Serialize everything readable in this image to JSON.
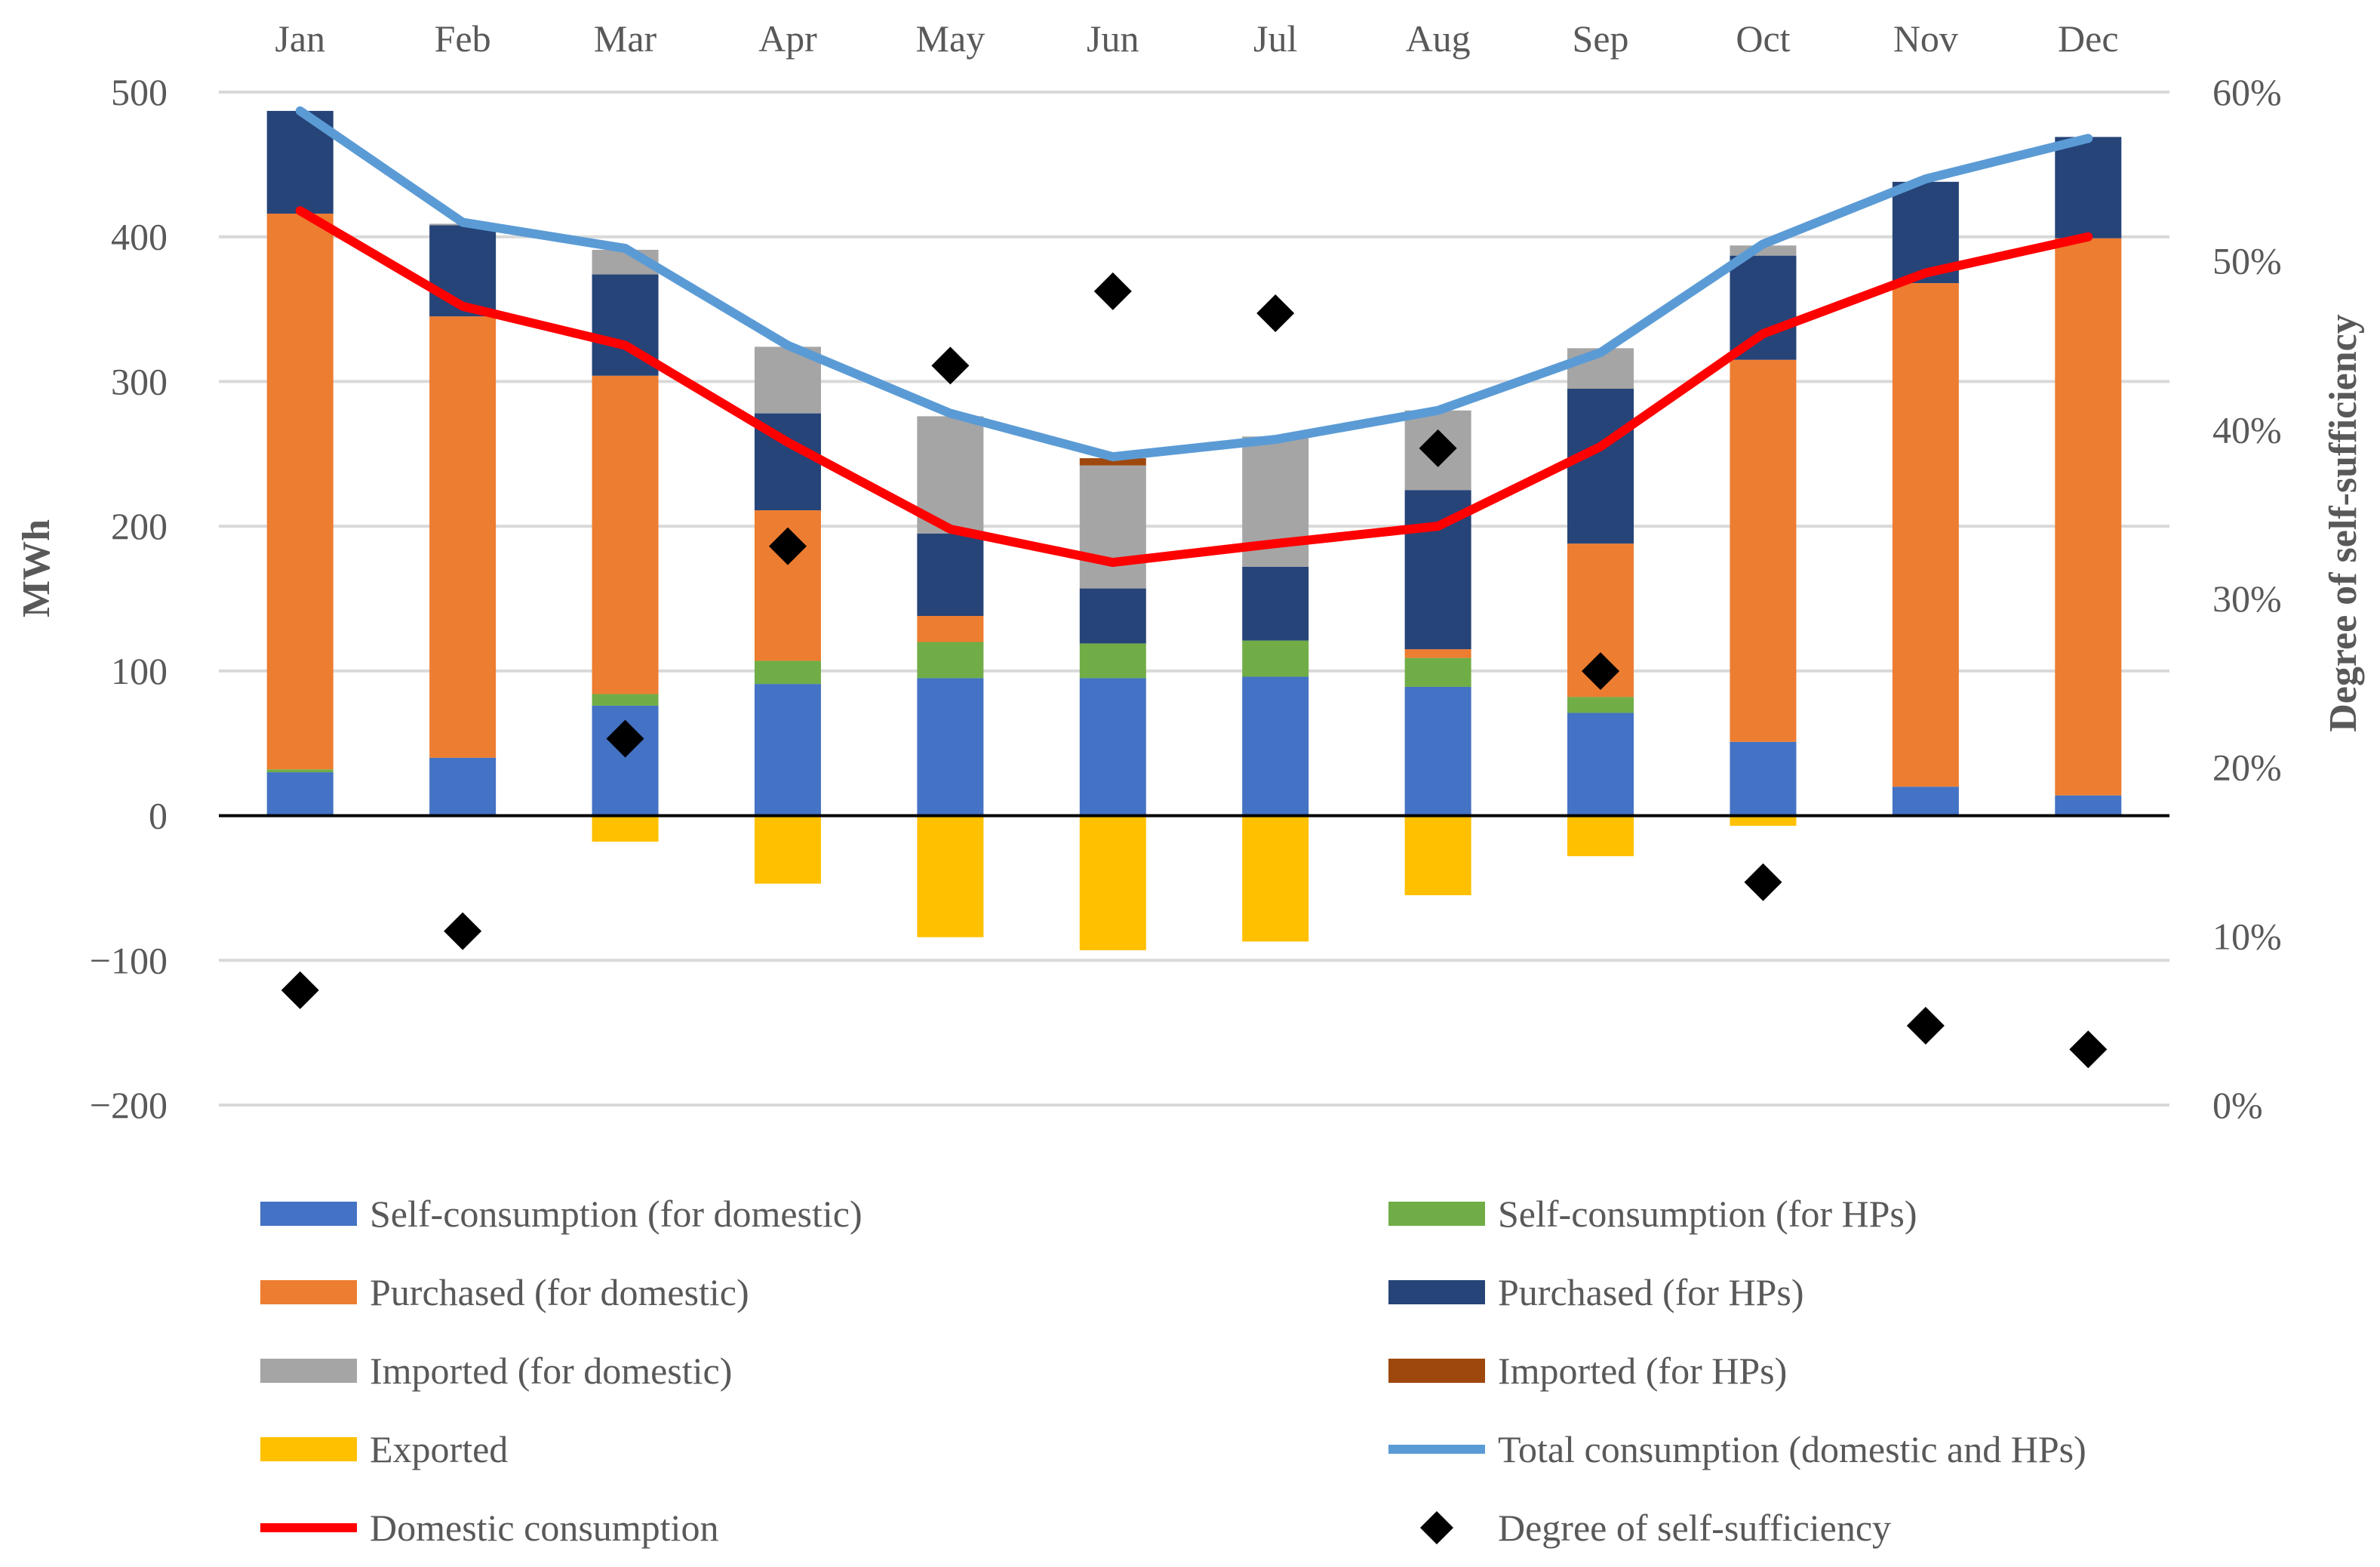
{
  "chart_data": {
    "type": "bar",
    "categories": [
      "Jan",
      "Feb",
      "Mar",
      "Apr",
      "May",
      "Jun",
      "Jul",
      "Aug",
      "Sep",
      "Oct",
      "Nov",
      "Dec"
    ],
    "ylabel": "MWh",
    "y2label": "Degree of self-sufficiency",
    "ylim": [
      -200,
      500
    ],
    "y_ticks": [
      500,
      400,
      300,
      200,
      100,
      0,
      -100,
      -200
    ],
    "y_tick_labels": [
      "500",
      "400",
      "300",
      "200",
      "100",
      "0",
      "−100",
      "−200"
    ],
    "y2lim": [
      0,
      60
    ],
    "y2_ticks": [
      60,
      50,
      40,
      30,
      20,
      10,
      0
    ],
    "y2_tick_labels": [
      "60%",
      "50%",
      "40%",
      "30%",
      "20%",
      "10%",
      "0%"
    ],
    "grid": true,
    "legend_position": "bottom",
    "series": [
      {
        "name": "Self-consumption (for domestic)",
        "kind": "bar",
        "color": "#4472C4",
        "values": [
          30,
          40,
          76,
          91,
          95,
          95,
          96,
          89,
          71,
          51,
          20,
          14
        ]
      },
      {
        "name": "Self-consumption (for HPs)",
        "kind": "bar",
        "color": "#70AD47",
        "values": [
          2,
          0,
          8,
          16,
          25,
          24,
          25,
          20,
          11,
          0,
          0,
          0
        ]
      },
      {
        "name": "Purchased (for domestic)",
        "kind": "bar",
        "color": "#ED7D31",
        "values": [
          384,
          305,
          220,
          104,
          18,
          0,
          0,
          6,
          106,
          264,
          348,
          385
        ]
      },
      {
        "name": "Purchased (for HPs)",
        "kind": "bar",
        "color": "#264478",
        "values": [
          71,
          63,
          70,
          67,
          57,
          38,
          51,
          110,
          107,
          72,
          70,
          70
        ]
      },
      {
        "name": "Imported (for domestic)",
        "kind": "bar",
        "color": "#A5A5A5",
        "values": [
          0,
          1,
          17,
          46,
          81,
          85,
          90,
          55,
          28,
          7,
          0,
          0
        ]
      },
      {
        "name": "Imported (for HPs)",
        "kind": "bar",
        "color": "#9E480E",
        "values": [
          0,
          0,
          0,
          0,
          0,
          5,
          0,
          0,
          0,
          0,
          0,
          0
        ]
      },
      {
        "name": "Exported",
        "kind": "bar",
        "color": "#FFC000",
        "values": [
          0,
          0,
          -18,
          -47,
          -84,
          -93,
          -87,
          -55,
          -28,
          -7,
          0,
          0
        ]
      },
      {
        "name": "Total consumption (domestic and HPs)",
        "kind": "line",
        "color": "#5B9BD5",
        "values": [
          487,
          410,
          392,
          325,
          278,
          248,
          260,
          280,
          320,
          395,
          440,
          468
        ]
      },
      {
        "name": "Domestic consumption",
        "kind": "line",
        "color": "#FF0000",
        "values": [
          418,
          352,
          325,
          258,
          198,
          175,
          188,
          200,
          255,
          333,
          375,
          400
        ]
      },
      {
        "name": "Degree of self-sufficiency",
        "kind": "scatter",
        "axis": "right",
        "color": "#000000",
        "values": [
          6.8,
          10.3,
          21.7,
          33.1,
          43.8,
          48.2,
          46.9,
          38.9,
          25.7,
          13.2,
          4.7,
          3.3
        ]
      }
    ]
  }
}
